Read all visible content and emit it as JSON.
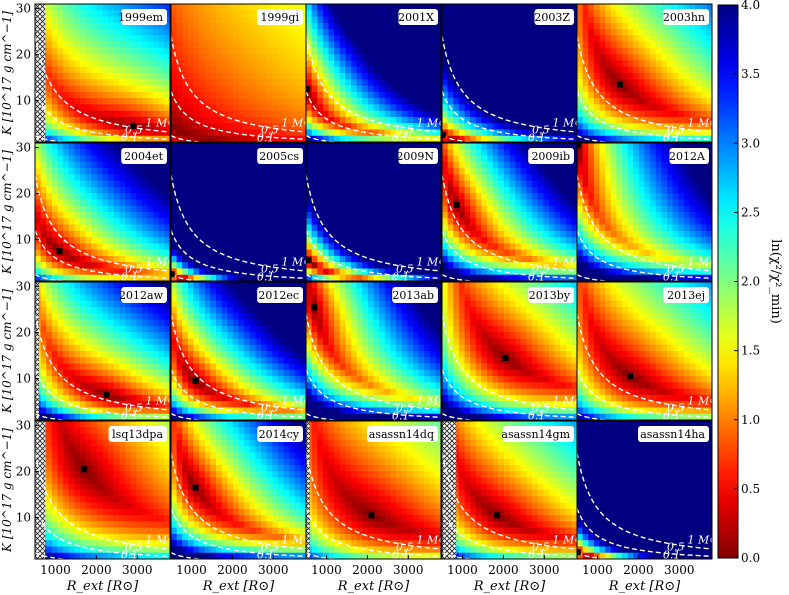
{
  "chart_data": {
    "type": "heatmap",
    "grid": {
      "rows": 4,
      "cols": 5
    },
    "panels": [
      {
        "name": "1999em",
        "best_fit": {
          "x": 2900,
          "y": 4.5
        },
        "chi_scale": 1.0,
        "hatch_max_x": 750
      },
      {
        "name": "1999gi",
        "best_fit": null,
        "chi_scale": 0.28,
        "hatch_max_x": 0
      },
      {
        "name": "2001X",
        "best_fit": {
          "x": 520,
          "y": 12.5
        },
        "chi_scale": 1.6,
        "hatch_max_x": 0
      },
      {
        "name": "2003Z",
        "best_fit": {
          "x": 520,
          "y": 2.5
        },
        "chi_scale": 1.4,
        "hatch_max_x": 0
      },
      {
        "name": "2003hn",
        "best_fit": {
          "x": 1550,
          "y": 13.5
        },
        "chi_scale": 1.1,
        "hatch_max_x": 0
      },
      {
        "name": "2004et",
        "best_fit": {
          "x": 1100,
          "y": 7.5
        },
        "chi_scale": 1.2,
        "hatch_max_x": 0
      },
      {
        "name": "2005cs",
        "best_fit": {
          "x": 520,
          "y": 2.5
        },
        "chi_scale": 2.4,
        "hatch_max_x": 0
      },
      {
        "name": "2009N",
        "best_fit": {
          "x": 560,
          "y": 5.5
        },
        "chi_scale": 2.2,
        "hatch_max_x": 0
      },
      {
        "name": "2009ib",
        "best_fit": {
          "x": 860,
          "y": 17.5
        },
        "chi_scale": 1.6,
        "hatch_max_x": 0
      },
      {
        "name": "2012A",
        "best_fit": {
          "x": 520,
          "y": 30.5
        },
        "chi_scale": 1.5,
        "hatch_max_x": 0
      },
      {
        "name": "2012aw",
        "best_fit": {
          "x": 2250,
          "y": 6.5
        },
        "chi_scale": 1.3,
        "hatch_max_x": 600
      },
      {
        "name": "2012ec",
        "best_fit": {
          "x": 1100,
          "y": 9.5
        },
        "chi_scale": 1.5,
        "hatch_max_x": 0
      },
      {
        "name": "2013ab",
        "best_fit": {
          "x": 700,
          "y": 25.5
        },
        "chi_scale": 1.6,
        "hatch_max_x": 0
      },
      {
        "name": "2013by",
        "best_fit": {
          "x": 2050,
          "y": 14.5
        },
        "chi_scale": 1.2,
        "hatch_max_x": 0
      },
      {
        "name": "2013ej",
        "best_fit": {
          "x": 1800,
          "y": 10.5
        },
        "chi_scale": 1.0,
        "hatch_max_x": 0
      },
      {
        "name": "lsq13dpa",
        "best_fit": {
          "x": 1700,
          "y": 20.5
        },
        "chi_scale": 0.9,
        "hatch_max_x": 750
      },
      {
        "name": "2014cy",
        "best_fit": {
          "x": 1100,
          "y": 16.5
        },
        "chi_scale": 1.4,
        "hatch_max_x": 0
      },
      {
        "name": "asassn14dq",
        "best_fit": {
          "x": 2100,
          "y": 10.5
        },
        "chi_scale": 0.8,
        "hatch_max_x": 600
      },
      {
        "name": "asassn14gm",
        "best_fit": {
          "x": 1850,
          "y": 10.5
        },
        "chi_scale": 1.0,
        "hatch_max_x": 850
      },
      {
        "name": "asassn14ha",
        "best_fit": {
          "x": 520,
          "y": 2.5
        },
        "chi_scale": 2.2,
        "hatch_max_x": 0
      }
    ],
    "mass_contours": [
      {
        "label": "0.1",
        "mass": 0.1
      },
      {
        "label": "0.5",
        "mass": 0.5
      },
      {
        "label": "1 M⊙",
        "mass": 1.0
      }
    ],
    "xlim": [
      500,
      3800
    ],
    "ylim": [
      1,
      31
    ],
    "xticks": [
      1000,
      2000,
      3000
    ],
    "xtick_labels": [
      "1000",
      "2000",
      "3000"
    ],
    "yticks": [
      10,
      20,
      30
    ],
    "ytick_labels": [
      "10",
      "20",
      "30"
    ],
    "xlabel": "R_ext [R⊙]",
    "ylabel": "K [10^17 g cm^−1]",
    "colorbar": {
      "label": "ln(χ²/χ²_min)",
      "range": [
        0.0,
        4.0
      ],
      "ticks": [
        0.0,
        0.5,
        1.0,
        1.5,
        2.0,
        2.5,
        3.0,
        3.5,
        4.0
      ],
      "tick_labels": [
        "0.0",
        "0.5",
        "1.0",
        "1.5",
        "2.0",
        "2.5",
        "3.0",
        "3.5",
        "4.0"
      ],
      "colormap": "jet_r"
    }
  }
}
